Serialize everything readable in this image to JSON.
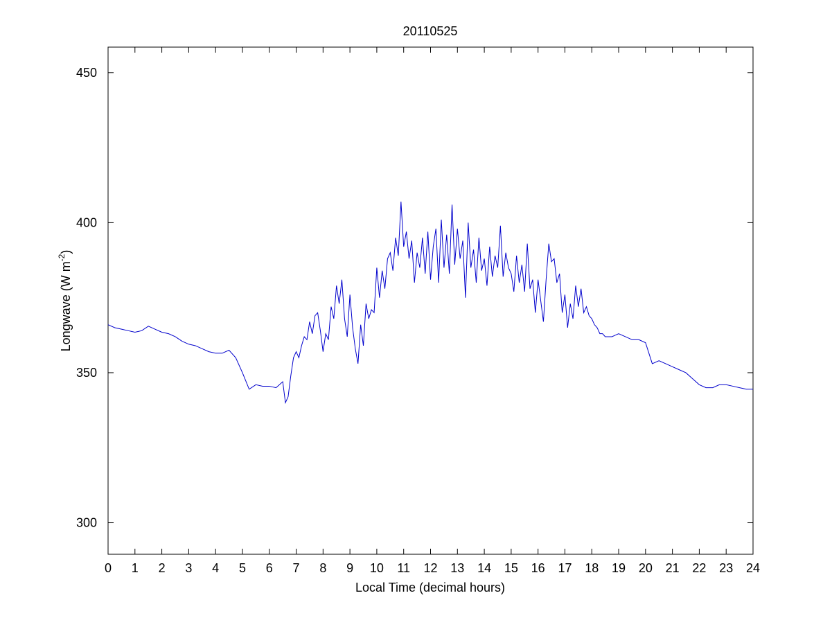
{
  "chart_data": {
    "type": "line",
    "title": "20110525",
    "x_label": "Local Time (decimal hours)",
    "y_label": {
      "text": "Longwave (W m",
      "superscript": "-2",
      "suffix": ")"
    },
    "color": "#0000cc",
    "xlim": [
      0,
      24
    ],
    "xticks": [
      0,
      1,
      2,
      3,
      4,
      5,
      6,
      7,
      8,
      9,
      10,
      11,
      12,
      13,
      14,
      15,
      16,
      17,
      18,
      19,
      20,
      21,
      22,
      23,
      24
    ],
    "ylim": [
      289.5,
      458.5
    ],
    "yticks": [
      300,
      350,
      400,
      450
    ],
    "x": [
      0,
      0.25,
      0.5,
      0.75,
      1,
      1.25,
      1.5,
      1.75,
      2,
      2.25,
      2.5,
      2.75,
      3,
      3.25,
      3.5,
      3.75,
      4,
      4.25,
      4.5,
      4.75,
      5,
      5.25,
      5.5,
      5.75,
      6,
      6.25,
      6.5,
      6.6,
      6.7,
      6.8,
      6.9,
      7,
      7.1,
      7.2,
      7.3,
      7.4,
      7.5,
      7.6,
      7.7,
      7.8,
      7.9,
      8,
      8.1,
      8.2,
      8.3,
      8.4,
      8.5,
      8.6,
      8.7,
      8.8,
      8.9,
      9,
      9.1,
      9.2,
      9.3,
      9.4,
      9.5,
      9.6,
      9.7,
      9.8,
      9.9,
      10,
      10.1,
      10.2,
      10.3,
      10.4,
      10.5,
      10.6,
      10.7,
      10.8,
      10.9,
      11,
      11.1,
      11.2,
      11.3,
      11.4,
      11.5,
      11.6,
      11.7,
      11.8,
      11.9,
      12,
      12.1,
      12.2,
      12.3,
      12.4,
      12.5,
      12.6,
      12.7,
      12.8,
      12.9,
      13,
      13.1,
      13.2,
      13.3,
      13.4,
      13.5,
      13.6,
      13.7,
      13.8,
      13.9,
      14,
      14.1,
      14.2,
      14.3,
      14.4,
      14.5,
      14.6,
      14.7,
      14.8,
      14.9,
      15,
      15.1,
      15.2,
      15.3,
      15.4,
      15.5,
      15.6,
      15.7,
      15.8,
      15.9,
      16,
      16.1,
      16.2,
      16.3,
      16.4,
      16.5,
      16.6,
      16.7,
      16.8,
      16.9,
      17,
      17.1,
      17.2,
      17.3,
      17.4,
      17.5,
      17.6,
      17.7,
      17.8,
      17.9,
      18,
      18.1,
      18.2,
      18.3,
      18.4,
      18.5,
      18.75,
      19,
      19.25,
      19.5,
      19.75,
      20,
      20.25,
      20.5,
      20.75,
      21,
      21.25,
      21.5,
      21.75,
      22,
      22.25,
      22.5,
      22.75,
      23,
      23.25,
      23.5,
      23.75,
      24
    ],
    "values": [
      366,
      365,
      364.5,
      364,
      363.5,
      364,
      365.5,
      364.5,
      363.5,
      363,
      362,
      360.5,
      359.5,
      359,
      358,
      357,
      356.5,
      356.5,
      357.5,
      355,
      350,
      344.5,
      346,
      345.5,
      345.5,
      345,
      347,
      340,
      342,
      349,
      355,
      357,
      355,
      359,
      362,
      361,
      367,
      363,
      369,
      370,
      364,
      357,
      363,
      361,
      372,
      368,
      379,
      373,
      381,
      368,
      362,
      376,
      365,
      358,
      353,
      366,
      359,
      373,
      368,
      371,
      370,
      385,
      375,
      384,
      378,
      388,
      390,
      384,
      395,
      389,
      407,
      392,
      397,
      388,
      394,
      380,
      390,
      385,
      395,
      383,
      397,
      381,
      392,
      398,
      380,
      401,
      385,
      396,
      383,
      406,
      386,
      398,
      388,
      394,
      375,
      400,
      385,
      391,
      380,
      395,
      384,
      388,
      379,
      392,
      382,
      389,
      385,
      399,
      382,
      390,
      385,
      383,
      377,
      389,
      380,
      386,
      377,
      393,
      378,
      381,
      370,
      381,
      374,
      367,
      381,
      393,
      387,
      388,
      380,
      383,
      370,
      376,
      365,
      373,
      368,
      379,
      372,
      378,
      370,
      372,
      369,
      368,
      366,
      365,
      363,
      363,
      362,
      362,
      363,
      362,
      361,
      361,
      360,
      353,
      354,
      353,
      352,
      351,
      350,
      348,
      346,
      345,
      345,
      346,
      346,
      345.5,
      345,
      344.5,
      344.5
    ]
  }
}
